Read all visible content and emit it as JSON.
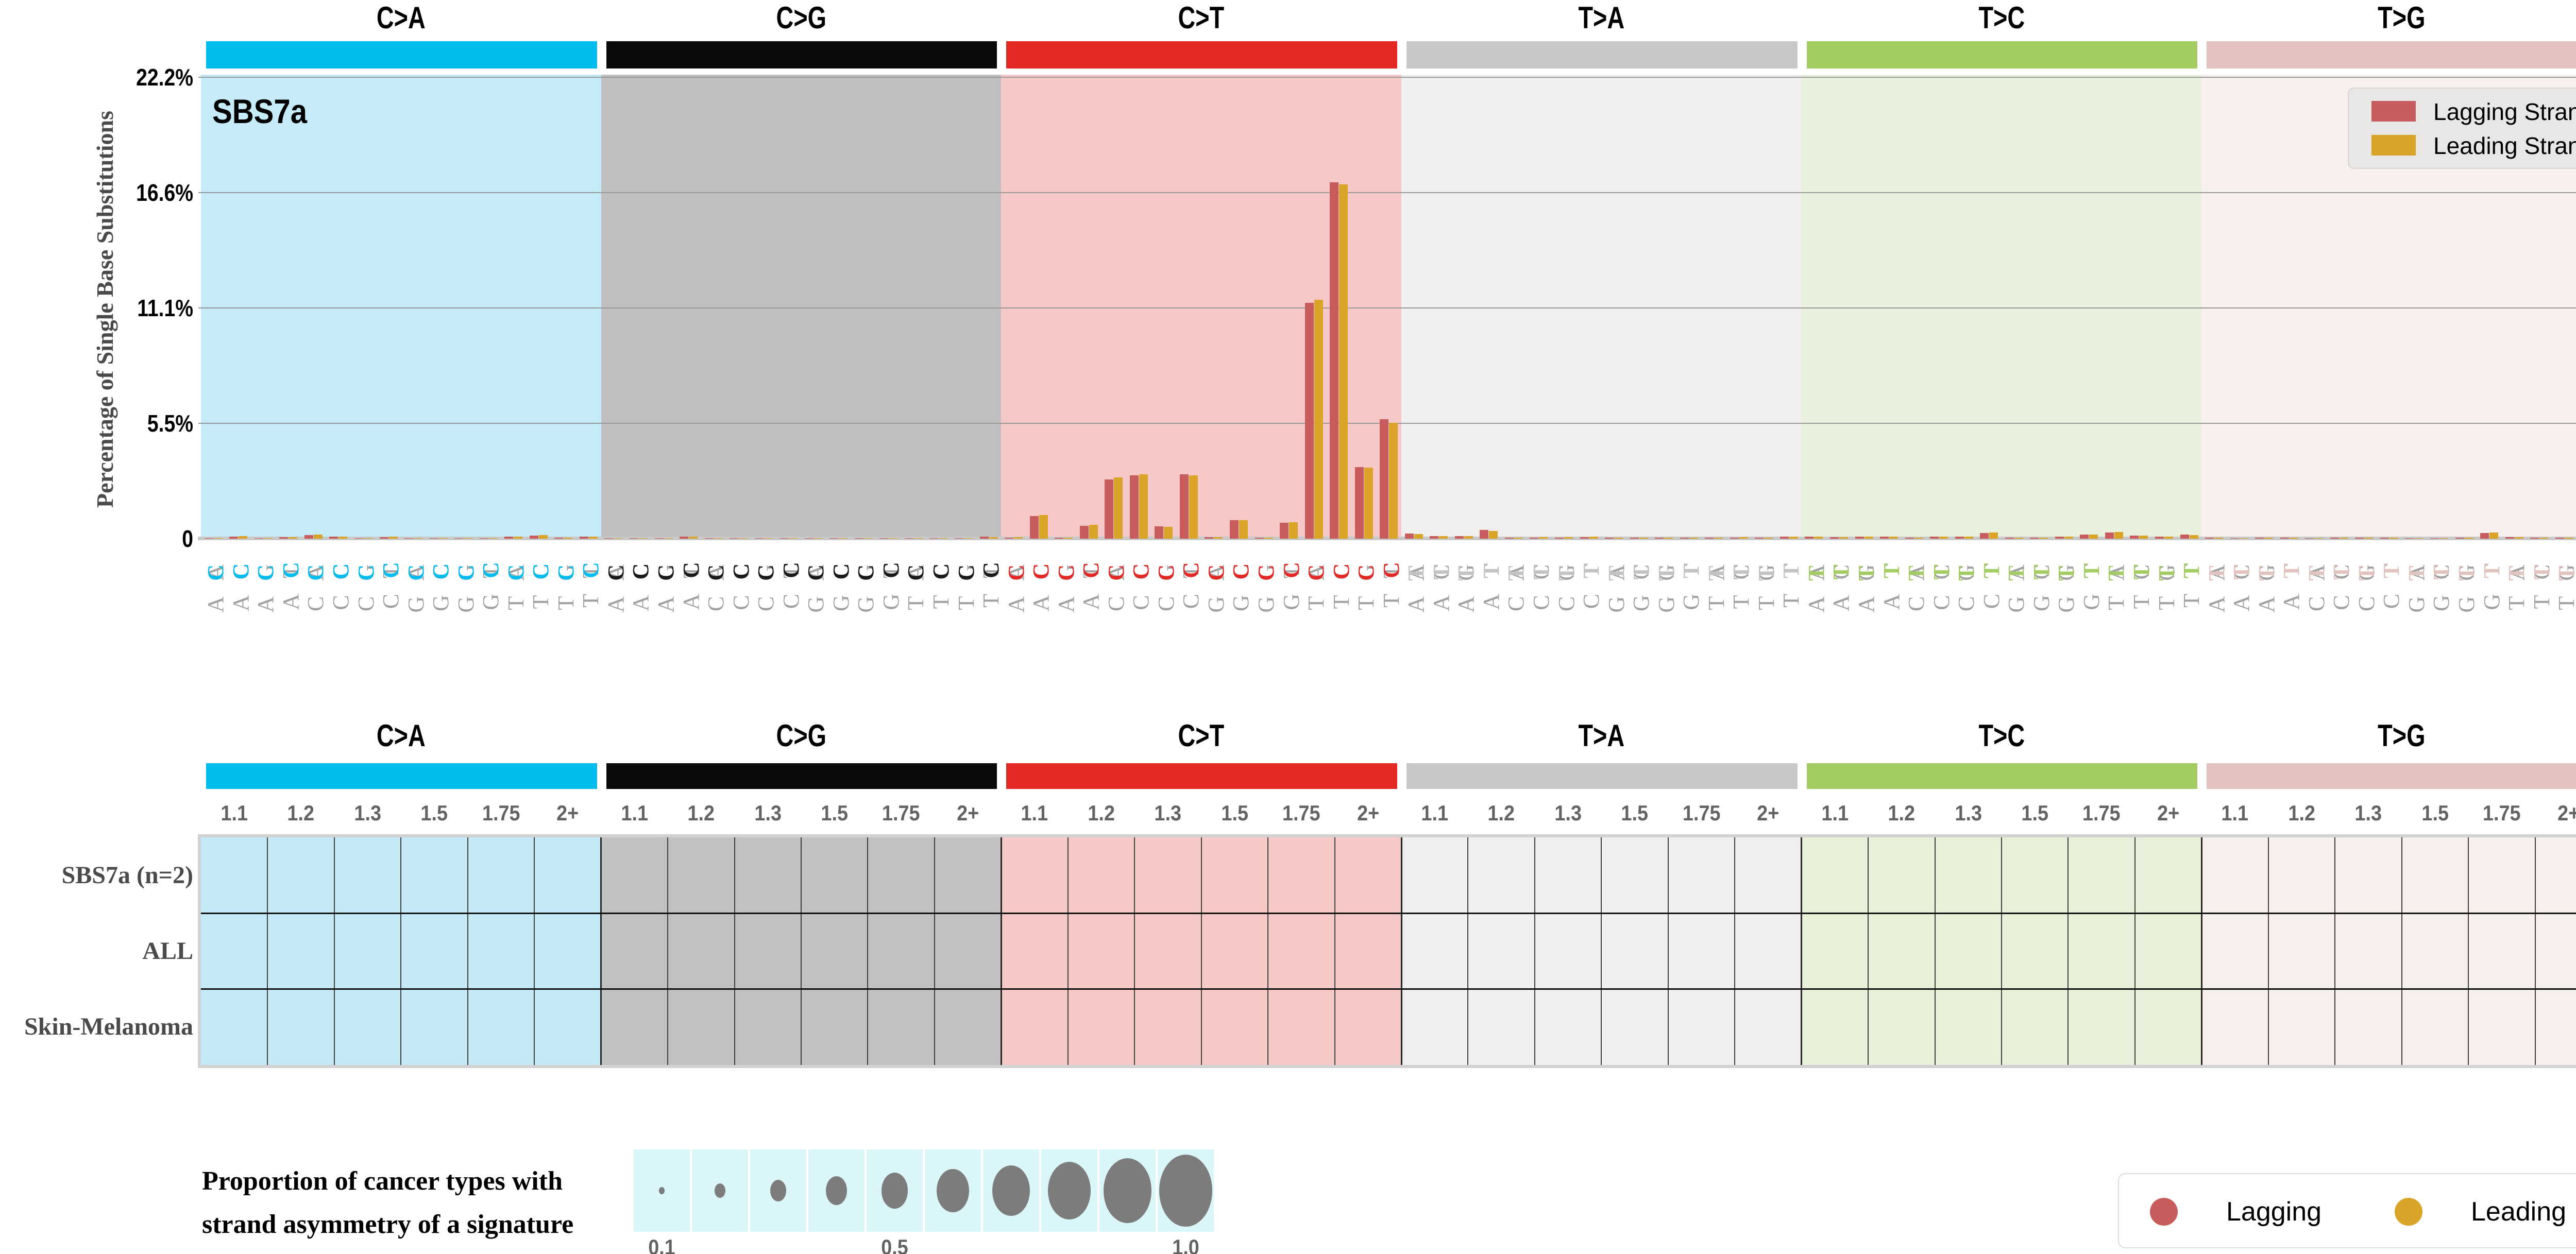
{
  "chart_data": [
    {
      "type": "bar",
      "title": "SBS7a",
      "ylabel": "Percentage of Single Base Substitutions",
      "yticks": [
        "22.2%",
        "16.6%",
        "11.1%",
        "5.5%",
        "0"
      ],
      "ylim": [
        0,
        22.2
      ],
      "grid": "horizontal",
      "legend_position": "top-right",
      "legend_items": [
        {
          "label": "Lagging Strand",
          "color": "#C85C5C"
        },
        {
          "label": "Leading Strand",
          "color": "#D9A428"
        }
      ],
      "sections": [
        {
          "label": "C>A",
          "header_color": "#03BCEE",
          "plot_bg": "#C5EBF8",
          "cell_bg": "#C3E8F6",
          "letter_color": "#03BCEE",
          "categories": [
            "ACA",
            "ACC",
            "ACG",
            "ACT",
            "CCA",
            "CCC",
            "CCG",
            "CCT",
            "GCA",
            "GCC",
            "GCG",
            "GCT",
            "TCA",
            "TCC",
            "TCG",
            "TCT"
          ],
          "lagging": [
            0.02,
            0.1,
            0.02,
            0.08,
            0.18,
            0.1,
            0.02,
            0.08,
            0.03,
            0.02,
            0.01,
            0.02,
            0.1,
            0.15,
            0.06,
            0.1
          ],
          "leading": [
            0.02,
            0.12,
            0.02,
            0.08,
            0.2,
            0.1,
            0.02,
            0.1,
            0.03,
            0.02,
            0.01,
            0.02,
            0.1,
            0.17,
            0.06,
            0.1
          ]
        },
        {
          "label": "C>G",
          "header_color": "#0A0A0A",
          "plot_bg": "#BFBFBF",
          "cell_bg": "#C1C1C1",
          "letter_color": "#1B1B1B",
          "categories": [
            "ACA",
            "ACC",
            "ACG",
            "ACT",
            "CCA",
            "CCC",
            "CCG",
            "CCT",
            "GCA",
            "GCC",
            "GCG",
            "GCT",
            "TCA",
            "TCC",
            "TCG",
            "TCT"
          ],
          "lagging": [
            0.02,
            0.02,
            0.01,
            0.09,
            0.02,
            0.02,
            0.01,
            0.02,
            0.02,
            0.02,
            0.01,
            0.02,
            0.03,
            0.03,
            0.02,
            0.1
          ],
          "leading": [
            0.02,
            0.02,
            0.01,
            0.09,
            0.02,
            0.02,
            0.01,
            0.02,
            0.02,
            0.02,
            0.01,
            0.02,
            0.03,
            0.03,
            0.02,
            0.08
          ]
        },
        {
          "label": "C>T",
          "header_color": "#E22925",
          "plot_bg": "#F6C9C8",
          "cell_bg": "#F6C9C7",
          "letter_color": "#E22925",
          "categories": [
            "ACA",
            "ACC",
            "ACG",
            "ACT",
            "CCA",
            "CCC",
            "CCG",
            "CCT",
            "GCA",
            "GCC",
            "GCG",
            "GCT",
            "TCA",
            "TCC",
            "TCG",
            "TCT"
          ],
          "lagging": [
            0.06,
            1.1,
            0.05,
            0.62,
            2.85,
            3.05,
            0.6,
            3.1,
            0.07,
            0.88,
            0.04,
            0.78,
            11.35,
            17.15,
            3.45,
            5.75
          ],
          "leading": [
            0.08,
            1.15,
            0.05,
            0.66,
            2.95,
            3.1,
            0.57,
            3.05,
            0.07,
            0.9,
            0.04,
            0.8,
            11.5,
            17.05,
            3.43,
            5.58
          ]
        },
        {
          "label": "T>A",
          "header_color": "#C8C7C6",
          "plot_bg": "#F0EFEE",
          "cell_bg": "#F0EFEE",
          "letter_color": "#C4C3C2",
          "categories": [
            "ATA",
            "ATC",
            "ATG",
            "ATT",
            "CTA",
            "CTC",
            "CTG",
            "CTT",
            "GTA",
            "GTC",
            "GTG",
            "GTT",
            "TTA",
            "TTC",
            "TTG",
            "TTT"
          ],
          "lagging": [
            0.25,
            0.12,
            0.12,
            0.42,
            0.05,
            0.06,
            0.06,
            0.07,
            0.05,
            0.04,
            0.05,
            0.05,
            0.06,
            0.06,
            0.05,
            0.09
          ],
          "leading": [
            0.22,
            0.12,
            0.12,
            0.38,
            0.05,
            0.07,
            0.07,
            0.09,
            0.05,
            0.05,
            0.06,
            0.06,
            0.06,
            0.07,
            0.05,
            0.09
          ]
        },
        {
          "label": "T>C",
          "header_color": "#A3CC62",
          "plot_bg": "#E9F0DC",
          "cell_bg": "#E8F0DA",
          "letter_color": "#A3CC62",
          "categories": [
            "ATA",
            "ATC",
            "ATG",
            "ATT",
            "CTA",
            "CTC",
            "CTG",
            "CTT",
            "GTA",
            "GTC",
            "GTG",
            "GTT",
            "TTA",
            "TTC",
            "TTG",
            "TTT"
          ],
          "lagging": [
            0.09,
            0.07,
            0.09,
            0.11,
            0.06,
            0.11,
            0.09,
            0.28,
            0.06,
            0.06,
            0.09,
            0.19,
            0.3,
            0.16,
            0.09,
            0.19
          ],
          "leading": [
            0.09,
            0.07,
            0.09,
            0.11,
            0.06,
            0.11,
            0.09,
            0.3,
            0.06,
            0.06,
            0.09,
            0.21,
            0.32,
            0.16,
            0.09,
            0.18
          ]
        },
        {
          "label": "T>G",
          "header_color": "#E3C3C0",
          "plot_bg": "#F8F0EF",
          "cell_bg": "#F7EFED",
          "letter_color": "#E3C3C0",
          "categories": [
            "ATA",
            "ATC",
            "ATG",
            "ATT",
            "CTA",
            "CTC",
            "CTG",
            "CTT",
            "GTA",
            "GTC",
            "GTG",
            "GTT",
            "TTA",
            "TTC",
            "TTG",
            "TTT"
          ],
          "lagging": [
            0.05,
            0.03,
            0.05,
            0.06,
            0.03,
            0.04,
            0.05,
            0.06,
            0.03,
            0.03,
            0.05,
            0.28,
            0.07,
            0.05,
            0.04,
            0.07
          ],
          "leading": [
            0.05,
            0.03,
            0.05,
            0.06,
            0.03,
            0.04,
            0.05,
            0.06,
            0.03,
            0.03,
            0.05,
            0.3,
            0.07,
            0.05,
            0.04,
            0.06
          ]
        }
      ]
    },
    {
      "type": "table",
      "description": "Strand asymmetry odds-ratio matrix; all cells empty (no bubbles shown)",
      "row_labels": [
        "SBS7a (n=2)",
        "ALL",
        "Skin-Melanoma"
      ],
      "columns_per_group": [
        "1.1",
        "1.2",
        "1.3",
        "1.5",
        "1.75",
        "2+"
      ],
      "all_cells_empty": true
    },
    {
      "type": "legend",
      "caption_line1": "Proportion of cancer types with",
      "caption_line2": "strand asymmetry of a signature",
      "bubble_values": [
        0.1,
        0.2,
        0.3,
        0.4,
        0.5,
        0.6,
        0.7,
        0.8,
        0.9,
        1.0
      ],
      "tick_labels": [
        "0.1",
        "0.5",
        "1.0"
      ],
      "bubble_color": "#7C7C7C",
      "strip_color": "#DBF6F9"
    },
    {
      "type": "legend",
      "items": [
        {
          "label": "Lagging",
          "color": "#C85C5C"
        },
        {
          "label": "Leading",
          "color": "#D9A428"
        }
      ]
    }
  ]
}
